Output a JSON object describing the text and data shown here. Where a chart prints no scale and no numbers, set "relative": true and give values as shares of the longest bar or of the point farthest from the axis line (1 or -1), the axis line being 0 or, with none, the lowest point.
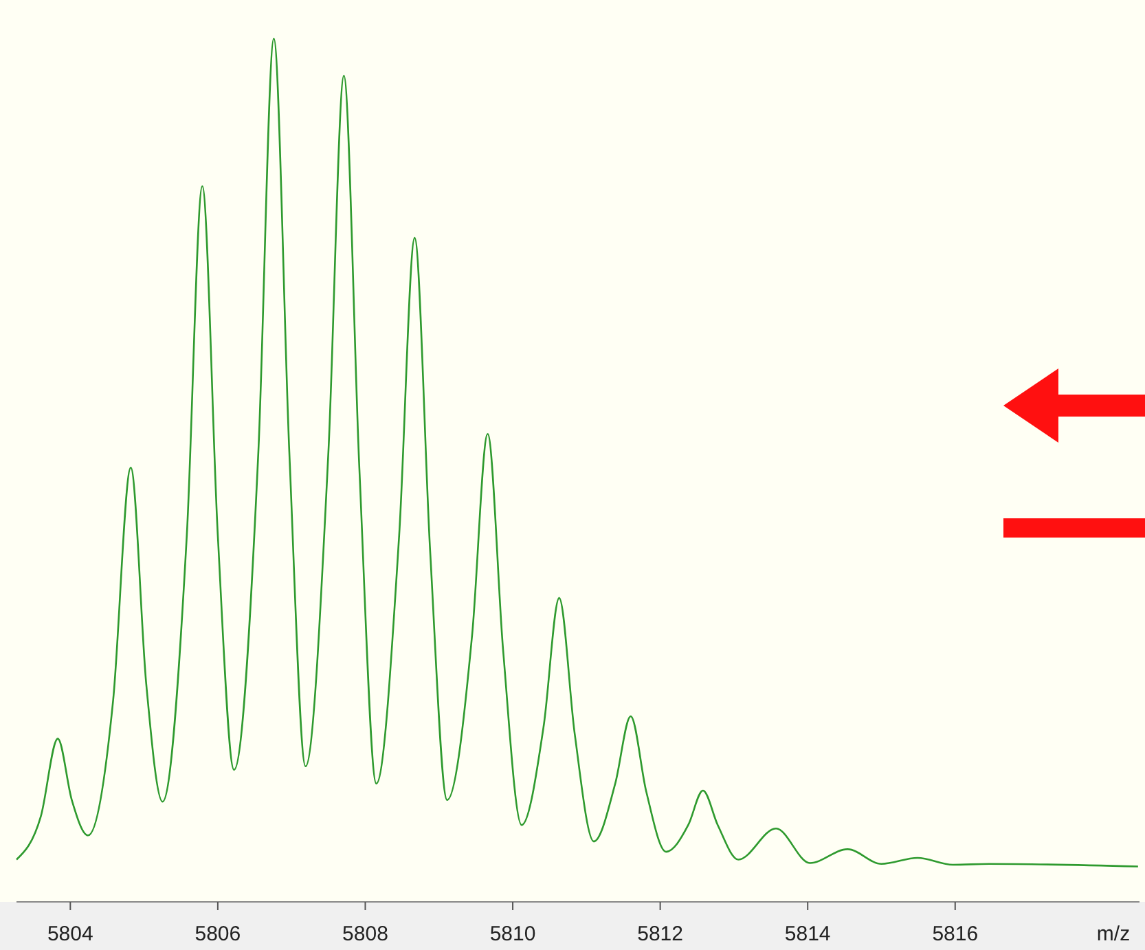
{
  "chart_data": {
    "type": "line",
    "relative": true,
    "xlabel": "m/z",
    "xlim": [
      5803.27,
      5818.5
    ],
    "xticks": [
      5804,
      5806,
      5808,
      5810,
      5812,
      5814,
      5816
    ],
    "series": [
      {
        "color": "#2e9a2e",
        "x": [
          5803.27,
          5803.6,
          5803.83,
          5804.02,
          5804.24,
          5804.58,
          5804.82,
          5805.03,
          5805.25,
          5805.58,
          5805.79,
          5806,
          5806.22,
          5806.55,
          5806.76,
          5806.97,
          5807.19,
          5807.5,
          5807.71,
          5807.92,
          5808.15,
          5808.46,
          5808.67,
          5808.88,
          5809.11,
          5809.45,
          5809.66,
          5809.87,
          5810.12,
          5810.42,
          5810.63,
          5810.84,
          5811.1,
          5811.39,
          5811.6,
          5811.81,
          5812.08,
          5812.38,
          5812.58,
          5812.78,
          5813.06,
          5813.57,
          5814.03,
          5814.54,
          5815,
          5815.49,
          5815.97,
          5816.46,
          5818.48
        ],
        "values": [
          0.049,
          0.099,
          0.189,
          0.118,
          0.077,
          0.233,
          0.503,
          0.252,
          0.116,
          0.425,
          0.829,
          0.425,
          0.153,
          0.521,
          1,
          0.521,
          0.157,
          0.521,
          0.957,
          0.502,
          0.137,
          0.425,
          0.769,
          0.406,
          0.118,
          0.31,
          0.542,
          0.291,
          0.089,
          0.204,
          0.352,
          0.195,
          0.07,
          0.137,
          0.215,
          0.128,
          0.058,
          0.089,
          0.129,
          0.089,
          0.049,
          0.085,
          0.045,
          0.061,
          0.044,
          0.051,
          0.043,
          0.044,
          0.041
        ]
      }
    ]
  }
}
